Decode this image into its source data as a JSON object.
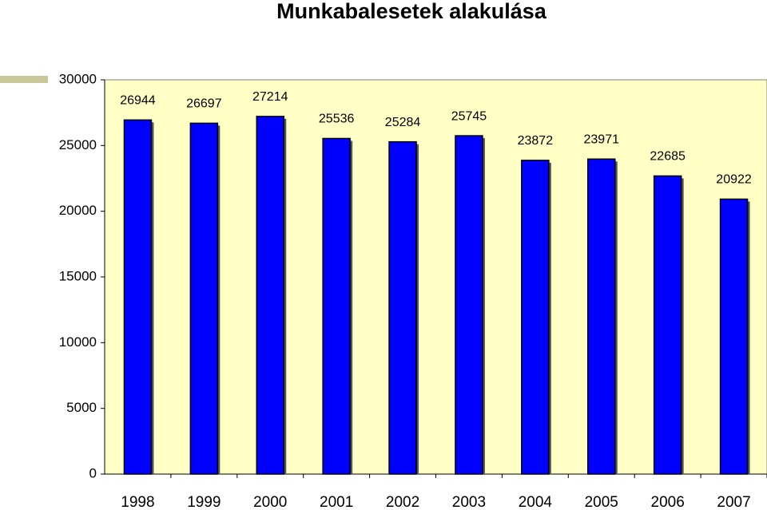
{
  "chart_data": {
    "type": "bar",
    "title": "Munkabalesetek alakulása",
    "categories": [
      "1998",
      "1999",
      "2000",
      "2001",
      "2002",
      "2003",
      "2004",
      "2005",
      "2006",
      "2007"
    ],
    "values": [
      26944,
      26697,
      27214,
      25536,
      25284,
      25745,
      23872,
      23971,
      22685,
      20922
    ],
    "color": "#0000ff",
    "ylim": [
      0,
      30000
    ],
    "yticks": [
      0,
      5000,
      10000,
      15000,
      20000,
      25000,
      30000
    ],
    "grid": false
  }
}
